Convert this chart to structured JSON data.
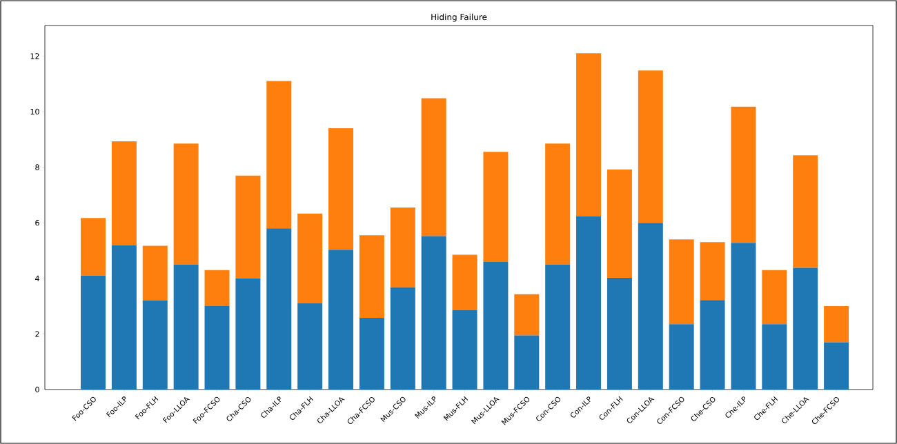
{
  "chart_data": {
    "type": "bar",
    "title": "Hiding Failure",
    "stacked": true,
    "categories": [
      "Foo-CSO",
      "Foo-ILP",
      "Foo-FLH",
      "Foo-LLOA",
      "Foo-FCSO",
      "Cha-CSO",
      "Cha-ILP",
      "Cha-FLH",
      "Cha-LLOA",
      "Cha-FCSO",
      "Mus-CSO",
      "Mus-ILP",
      "Mus-FLH",
      "Mus-LLOA",
      "Mus-FCSO",
      "Con-CSO",
      "Con-ILP",
      "Con-FLH",
      "Con-LLOA",
      "Con-FCSO",
      "Che-CSO",
      "Che-ILP",
      "Che-FLH",
      "Che-LLOA",
      "Che-FCSO"
    ],
    "series": [
      {
        "color": "#1f77b4",
        "values": [
          4.1,
          5.2,
          3.2,
          4.5,
          3.0,
          4.0,
          5.8,
          3.1,
          5.03,
          2.58,
          3.68,
          5.52,
          2.85,
          4.6,
          1.95,
          4.5,
          6.23,
          4.02,
          6.0,
          2.35,
          3.22,
          5.28,
          2.35,
          4.38,
          1.7
        ]
      },
      {
        "color": "#ff7f0e",
        "values": [
          2.07,
          3.73,
          1.97,
          4.35,
          1.3,
          3.7,
          5.3,
          3.23,
          4.37,
          2.97,
          2.87,
          4.96,
          2.0,
          3.95,
          1.48,
          4.35,
          5.87,
          3.9,
          5.48,
          3.05,
          2.08,
          4.9,
          1.95,
          4.05,
          1.3
        ]
      }
    ],
    "ylim": [
      0,
      13.1
    ],
    "yticks": [
      0,
      2,
      4,
      6,
      8,
      10,
      12
    ],
    "grid": false
  }
}
